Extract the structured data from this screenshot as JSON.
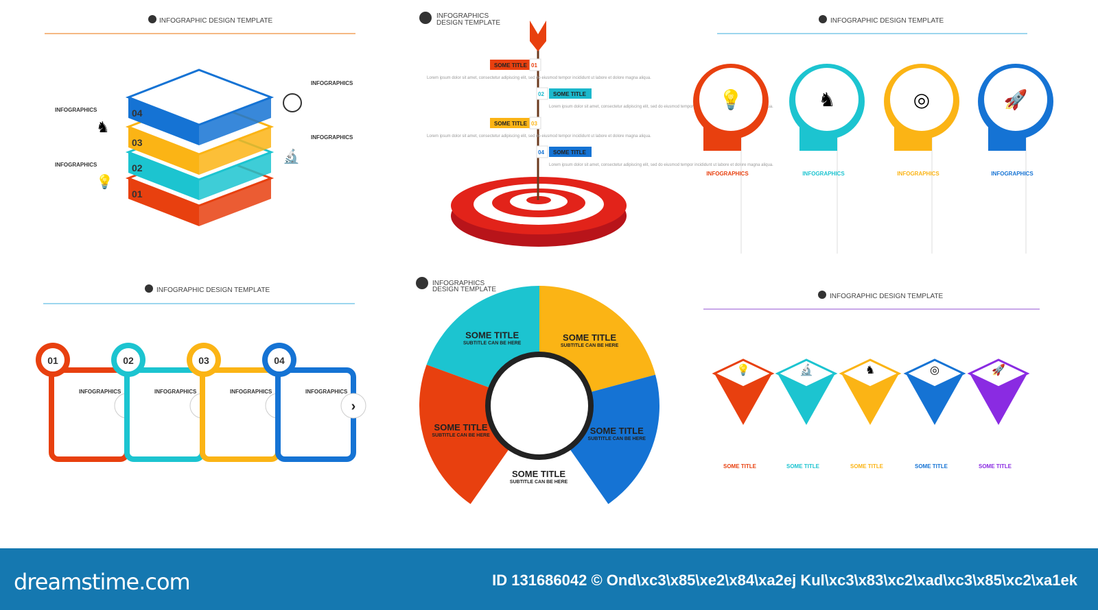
{
  "headers": {
    "template": "INFOGRAPHIC DESIGN TEMPLATE",
    "infographics": "INFOGRAPHICS",
    "design_template": "DESIGN TEMPLATE"
  },
  "lorem": "Lorem ipsum dolor sit amet, consectetur adipiscing elit, sed do eiusmod tempor incididunt ut labore et dolore magna aliqua.",
  "layers": {
    "numbers": [
      "01",
      "02",
      "03",
      "04"
    ],
    "labels": [
      "INFOGRAPHICS",
      "INFOGRAPHICS",
      "INFOGRAPHICS",
      "INFOGRAPHICS"
    ],
    "colors": [
      "#e8400f",
      "#1cc4d0",
      "#fbb415",
      "#1573d4"
    ]
  },
  "target": {
    "steps": [
      {
        "num": "01",
        "title": "SOME TITLE",
        "color": "#e8400f"
      },
      {
        "num": "02",
        "title": "SOME TITLE",
        "color": "#1cb8cc"
      },
      {
        "num": "03",
        "title": "SOME TITLE",
        "color": "#fbb415"
      },
      {
        "num": "04",
        "title": "SOME TITLE",
        "color": "#1573d4"
      }
    ]
  },
  "pins": {
    "items": [
      {
        "label": "INFOGRAPHICS",
        "color": "#e8400f",
        "icon": "lightbulb-icon"
      },
      {
        "label": "INFOGRAPHICS",
        "color": "#1cc4d0",
        "icon": "chess-knight-icon"
      },
      {
        "label": "INFOGRAPHICS",
        "color": "#fbb415",
        "icon": "target-icon"
      },
      {
        "label": "INFOGRAPHICS",
        "color": "#1573d4",
        "icon": "rocket-icon"
      }
    ]
  },
  "tabs": {
    "items": [
      {
        "num": "01",
        "label": "INFOGRAPHICS",
        "color": "#e8400f"
      },
      {
        "num": "02",
        "label": "INFOGRAPHICS",
        "color": "#1cc4d0"
      },
      {
        "num": "03",
        "label": "INFOGRAPHICS",
        "color": "#fbb415"
      },
      {
        "num": "04",
        "label": "INFOGRAPHICS",
        "color": "#1573d4"
      }
    ]
  },
  "ring": {
    "title": "SOME TITLE",
    "subtitle": "SUBTITLE CAN BE HERE",
    "colors": [
      "#1cc4d0",
      "#fbb415",
      "#1573d4",
      "#e8400f"
    ]
  },
  "pyramids": {
    "items": [
      {
        "title": "SOME TITLE",
        "color": "#e8400f"
      },
      {
        "title": "SOME TITLE",
        "color": "#1cc4d0"
      },
      {
        "title": "SOME TITLE",
        "color": "#fbb415"
      },
      {
        "title": "SOME TITLE",
        "color": "#1573d4"
      },
      {
        "title": "SOME TITLE",
        "color": "#8a2be2"
      }
    ]
  },
  "footer": {
    "logo": "dreamstime.com",
    "credit": "ID 131686042 © Ond\\xc3\\x85\\xe2\\x84\\xa2ej Kul\\xc3\\x83\\xc2\\xad\\xc3\\x85\\xc2\\xa1ek"
  }
}
